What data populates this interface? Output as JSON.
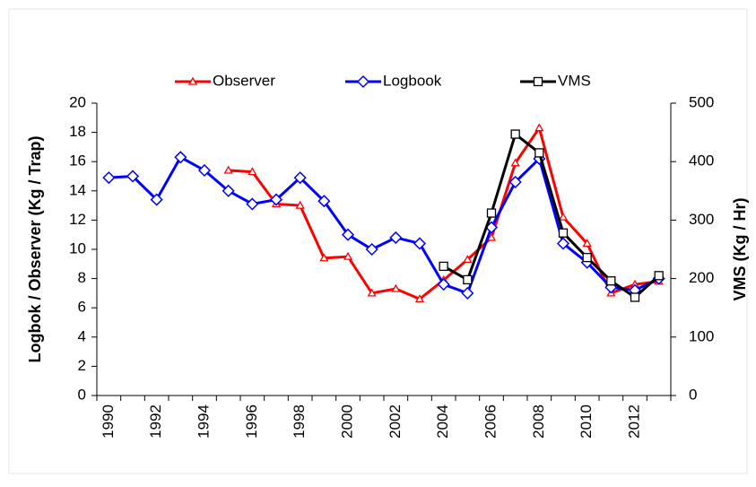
{
  "chart_data": {
    "type": "line",
    "categories": [
      "1990",
      null,
      "1992",
      null,
      "1994",
      null,
      "1996",
      null,
      "1998",
      null,
      "2000",
      null,
      "2002",
      null,
      "2004",
      null,
      "2006",
      null,
      "2008",
      null,
      "2010",
      null,
      "2012",
      null
    ],
    "ylabel": "Logbok / Observer (Kg / Trap)",
    "y2label": "VMS (Kg / Hr)",
    "ylim": [
      0,
      20
    ],
    "yticks": [
      0,
      2,
      4,
      6,
      8,
      10,
      12,
      14,
      16,
      18,
      20
    ],
    "y2lim": [
      0,
      500
    ],
    "y2ticks": [
      0,
      100,
      200,
      300,
      400,
      500
    ],
    "series": [
      {
        "name": "Observer",
        "color": "#ff0000",
        "marker": "triangle",
        "dashed_until": "1999",
        "values": [
          null,
          null,
          null,
          null,
          null,
          15.4,
          15.3,
          13.1,
          13.0,
          9.4,
          9.5,
          7.0,
          7.3,
          6.6,
          7.9,
          9.3,
          10.8,
          15.9,
          18.3,
          12.2,
          10.4,
          7.0,
          7.6,
          7.8
        ]
      },
      {
        "name": "Logbook",
        "color": "#0000ff",
        "marker": "diamond",
        "values": [
          14.9,
          15.0,
          13.4,
          16.3,
          15.4,
          14.0,
          13.1,
          13.4,
          14.9,
          13.3,
          11.0,
          10.0,
          10.8,
          10.4,
          7.6,
          7.0,
          11.5,
          14.6,
          16.2,
          10.4,
          9.1,
          7.4,
          7.2,
          8.0
        ]
      },
      {
        "name": "VMS",
        "color": "#000000",
        "marker": "square",
        "axis": "y2",
        "values": [
          null,
          null,
          null,
          null,
          null,
          null,
          null,
          null,
          null,
          null,
          null,
          null,
          null,
          null,
          221,
          198,
          312,
          447,
          415,
          278,
          236,
          196,
          168,
          205
        ]
      }
    ]
  }
}
